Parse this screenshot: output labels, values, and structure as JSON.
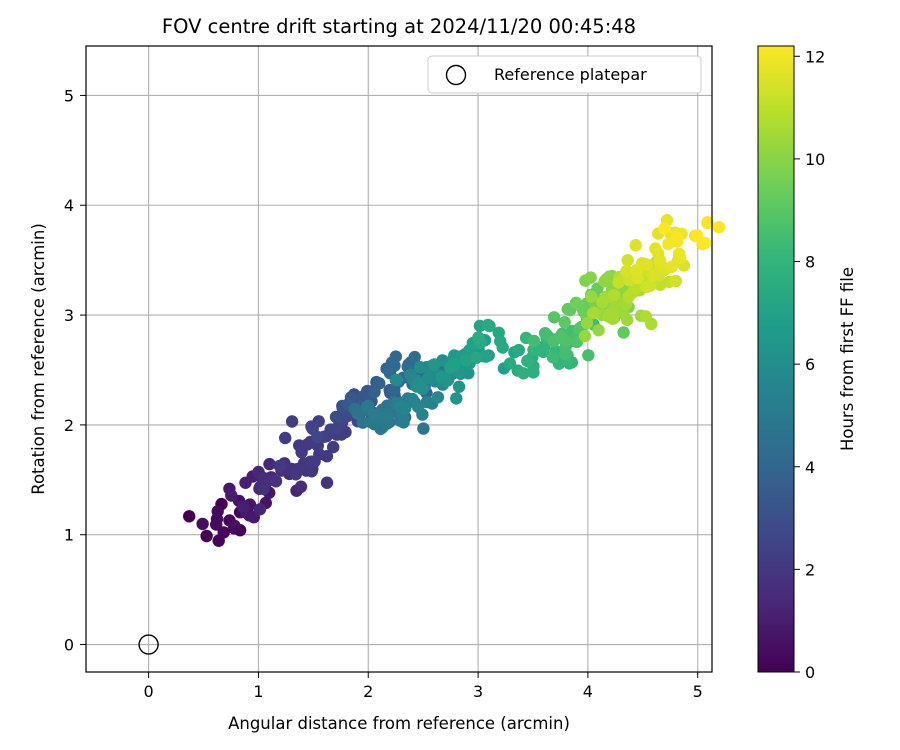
{
  "chart_data": {
    "type": "scatter",
    "title": "FOV centre drift starting at 2024/11/20 00:45:48",
    "xlabel": "Angular distance from reference (arcmin)",
    "ylabel": "Rotation from reference (arcmin)",
    "xlim": [
      -0.57,
      5.13
    ],
    "ylim": [
      -0.25,
      5.45
    ],
    "xticks": [
      0,
      1,
      2,
      3,
      4,
      5
    ],
    "yticks": [
      0,
      1,
      2,
      3,
      4,
      5
    ],
    "grid": true,
    "legend": {
      "placement": "top-right",
      "entries": [
        "Reference platepar"
      ]
    },
    "reference_point": {
      "name": "Reference platepar",
      "x": 0,
      "y": 0,
      "marker": "open-circle",
      "color": "#000000"
    },
    "colorbar": {
      "label": "Hours from first FF file",
      "range": [
        0,
        12.2
      ],
      "ticks": [
        0,
        2,
        4,
        6,
        8,
        10,
        12
      ],
      "colormap": "viridis",
      "colors": [
        "#440154",
        "#482878",
        "#3e4989",
        "#31688e",
        "#26828e",
        "#1f9e89",
        "#35b779",
        "#6ece58",
        "#b5de2b",
        "#fde725"
      ]
    },
    "clusters": [
      {
        "hours": [
          0,
          2.2
        ],
        "x_start": 0.55,
        "y_start": 1.05,
        "x_end": 1.5,
        "y_end": 1.75,
        "spread_x": 0.3,
        "spread_y": 0.22,
        "count": 70
      },
      {
        "hours": [
          2.2,
          4.5
        ],
        "x_start": 1.6,
        "y_start": 1.95,
        "x_end": 2.6,
        "y_end": 2.55,
        "spread_x": 0.3,
        "spread_y": 0.2,
        "count": 80
      },
      {
        "hours": [
          4.5,
          7.5
        ],
        "x_start": 2.0,
        "y_start": 2.0,
        "x_end": 3.25,
        "y_end": 2.8,
        "spread_x": 0.3,
        "spread_y": 0.2,
        "count": 110
      },
      {
        "hours": [
          7.5,
          10.2
        ],
        "x_start": 3.45,
        "y_start": 2.5,
        "x_end": 4.3,
        "y_end": 3.3,
        "spread_x": 0.28,
        "spread_y": 0.2,
        "count": 90
      },
      {
        "hours": [
          10.2,
          12.2
        ],
        "x_start": 4.1,
        "y_start": 2.9,
        "x_end": 5.0,
        "y_end": 3.8,
        "spread_x": 0.28,
        "spread_y": 0.22,
        "count": 90
      }
    ]
  }
}
